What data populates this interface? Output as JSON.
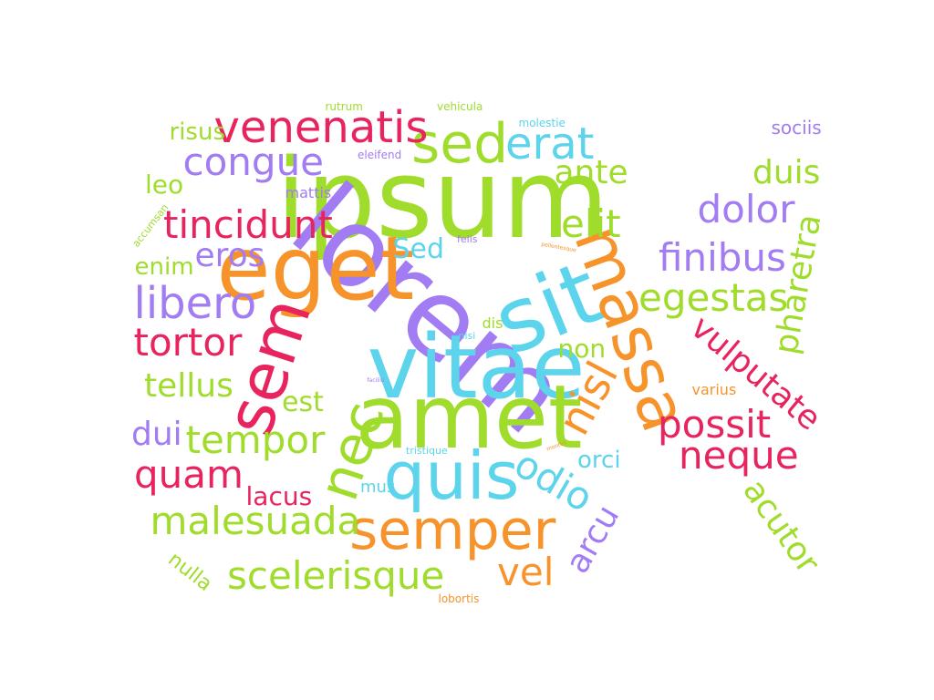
{
  "palette": {
    "green": "#a0dc2c",
    "orange": "#f7932b",
    "purple": "#a27cf2",
    "pink": "#e8245e",
    "cyan": "#5bd4ec"
  },
  "words": [
    {
      "id": "ipsum",
      "text": "ipsum",
      "color": "green",
      "size": 120
    },
    {
      "id": "lorem",
      "text": "lorem",
      "color": "purple",
      "size": 120
    },
    {
      "id": "vitae",
      "text": "vitae",
      "color": "cyan",
      "size": 96
    },
    {
      "id": "amet",
      "text": "amet",
      "color": "green",
      "size": 96
    },
    {
      "id": "eget",
      "text": "eget",
      "color": "orange",
      "size": 96
    },
    {
      "id": "sit",
      "text": "sit",
      "color": "cyan",
      "size": 96
    },
    {
      "id": "massa",
      "text": "massa",
      "color": "orange",
      "size": 72
    },
    {
      "id": "sem",
      "text": "sem",
      "color": "pink",
      "size": 72
    },
    {
      "id": "quis",
      "text": "quis",
      "color": "cyan",
      "size": 72
    },
    {
      "id": "sed",
      "text": "sed",
      "color": "green",
      "size": 60
    },
    {
      "id": "nec",
      "text": "nec",
      "color": "green",
      "size": 60
    },
    {
      "id": "semper",
      "text": "semper",
      "color": "orange",
      "size": 60
    },
    {
      "id": "nisl",
      "text": "nisl",
      "color": "orange",
      "size": 48
    },
    {
      "id": "venenatis",
      "text": "venenatis",
      "color": "pink",
      "size": 48
    },
    {
      "id": "erat",
      "text": "erat",
      "color": "cyan",
      "size": 48
    },
    {
      "id": "congue",
      "text": "congue",
      "color": "purple",
      "size": 42
    },
    {
      "id": "tincidunt",
      "text": "tincidunt",
      "color": "pink",
      "size": 42
    },
    {
      "id": "libero",
      "text": "libero",
      "color": "purple",
      "size": 48
    },
    {
      "id": "tortor",
      "text": "tortor",
      "color": "pink",
      "size": 42
    },
    {
      "id": "elit",
      "text": "elit",
      "color": "green",
      "size": 42
    },
    {
      "id": "dolor",
      "text": "dolor",
      "color": "purple",
      "size": 42
    },
    {
      "id": "finibus",
      "text": "finibus",
      "color": "purple",
      "size": 42
    },
    {
      "id": "egestas",
      "text": "egestas",
      "color": "green",
      "size": 42
    },
    {
      "id": "vulputate",
      "text": "vulputate",
      "color": "pink",
      "size": 36
    },
    {
      "id": "possit",
      "text": "possit",
      "color": "pink",
      "size": 42
    },
    {
      "id": "neque",
      "text": "neque",
      "color": "pink",
      "size": 42
    },
    {
      "id": "tempor",
      "text": "tempor",
      "color": "green",
      "size": 42
    },
    {
      "id": "quam",
      "text": "quam",
      "color": "pink",
      "size": 42
    },
    {
      "id": "malesuada",
      "text": "malesuada",
      "color": "green",
      "size": 42
    },
    {
      "id": "scelerisque",
      "text": "scelerisque",
      "color": "green",
      "size": 42
    },
    {
      "id": "vel",
      "text": "vel",
      "color": "orange",
      "size": 42
    },
    {
      "id": "odio",
      "text": "odio",
      "color": "cyan",
      "size": 42
    },
    {
      "id": "arcu",
      "text": "arcu",
      "color": "purple",
      "size": 36
    },
    {
      "id": "acutor",
      "text": "acutor",
      "color": "green",
      "size": 36
    },
    {
      "id": "pharetra",
      "text": "pharetra",
      "color": "green",
      "size": 36
    },
    {
      "id": "ante",
      "text": "ante",
      "color": "green",
      "size": 36
    },
    {
      "id": "duis",
      "text": "duis",
      "color": "green",
      "size": 36
    },
    {
      "id": "eros",
      "text": "eros",
      "color": "purple",
      "size": 36
    },
    {
      "id": "tellus",
      "text": "tellus",
      "color": "green",
      "size": 36
    },
    {
      "id": "est",
      "text": "est",
      "color": "green",
      "size": 30
    },
    {
      "id": "dui",
      "text": "dui",
      "color": "purple",
      "size": 36
    },
    {
      "id": "lacus",
      "text": "lacus",
      "color": "pink",
      "size": 28
    },
    {
      "id": "non",
      "text": "non",
      "color": "green",
      "size": 28
    },
    {
      "id": "leo",
      "text": "leo",
      "color": "green",
      "size": 28
    },
    {
      "id": "enim",
      "text": "enim",
      "color": "green",
      "size": 26
    },
    {
      "id": "risus",
      "text": "risus",
      "color": "green",
      "size": 26
    },
    {
      "id": "sed-cap",
      "text": "Sed",
      "color": "cyan",
      "size": 30
    },
    {
      "id": "orci",
      "text": "orci",
      "color": "cyan",
      "size": 26
    },
    {
      "id": "nulla",
      "text": "nulla",
      "color": "green",
      "size": 22
    },
    {
      "id": "sociis",
      "text": "sociis",
      "color": "purple",
      "size": 20
    },
    {
      "id": "mus",
      "text": "mus",
      "color": "cyan",
      "size": 18
    },
    {
      "id": "varius",
      "text": "varius",
      "color": "orange",
      "size": 16
    },
    {
      "id": "mattis",
      "text": "mattis",
      "color": "purple",
      "size": 16
    },
    {
      "id": "dis",
      "text": "dis",
      "color": "green",
      "size": 16
    },
    {
      "id": "rutrum",
      "text": "rutrum",
      "color": "green",
      "size": 12
    },
    {
      "id": "vehicula",
      "text": "vehicula",
      "color": "green",
      "size": 12
    },
    {
      "id": "molestie",
      "text": "molestie",
      "color": "cyan",
      "size": 12
    },
    {
      "id": "eleifend",
      "text": "eleifend",
      "color": "purple",
      "size": 12
    },
    {
      "id": "accumsan",
      "text": "accumsan",
      "color": "green",
      "size": 11
    },
    {
      "id": "felis",
      "text": "felis",
      "color": "purple",
      "size": 11
    },
    {
      "id": "pellentesque",
      "text": "pellentesque",
      "color": "orange",
      "size": 6
    },
    {
      "id": "nisi",
      "text": "nisi",
      "color": "cyan",
      "size": 11
    },
    {
      "id": "facilisi",
      "text": "facilisi",
      "color": "purple",
      "size": 6
    },
    {
      "id": "tristique",
      "text": "tristique",
      "color": "cyan",
      "size": 11
    },
    {
      "id": "montes",
      "text": "montes",
      "color": "orange",
      "size": 6
    },
    {
      "id": "lobortis",
      "text": "lobortis",
      "color": "orange",
      "size": 12
    }
  ]
}
